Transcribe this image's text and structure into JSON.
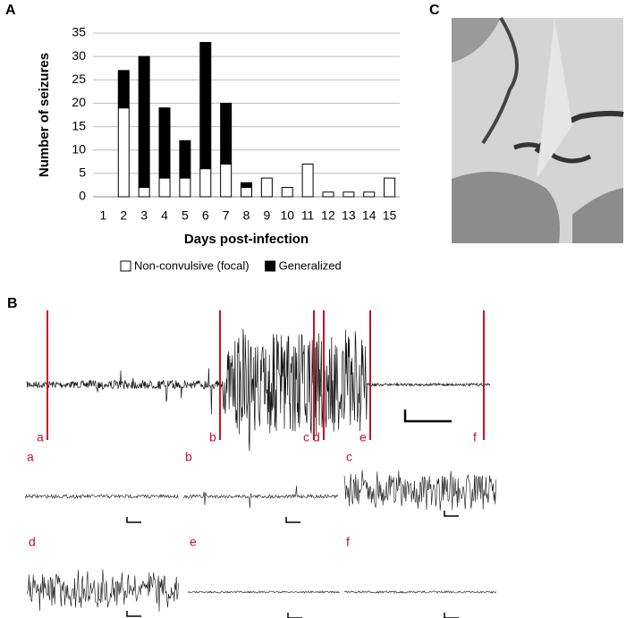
{
  "chart_data": {
    "type": "stacked-bar",
    "x_label": "Days post-infection",
    "y_label": "Number of seizures",
    "categories": [
      "1",
      "2",
      "3",
      "4",
      "5",
      "6",
      "7",
      "8",
      "9",
      "10",
      "11",
      "12",
      "13",
      "14",
      "15"
    ],
    "series": [
      {
        "name": "Non-convulsive (focal)",
        "color": "#ffffff",
        "values": [
          0,
          19,
          2,
          4,
          4,
          6,
          7,
          2,
          4,
          2,
          7,
          1,
          1,
          1,
          4
        ]
      },
      {
        "name": "Generalized",
        "color": "#000000",
        "values": [
          0,
          8,
          28,
          15,
          8,
          27,
          13,
          1,
          0,
          0,
          0,
          0,
          0,
          0,
          0
        ]
      }
    ],
    "ylim": [
      0,
      35
    ],
    "yticks": [
      0,
      5,
      10,
      15,
      20,
      25,
      30,
      35
    ],
    "grid": true,
    "legend": "bottom"
  },
  "panels": {
    "a": "A",
    "b": "B",
    "c": "C"
  },
  "trace_labels": [
    "a",
    "b",
    "c",
    "d",
    "e",
    "f"
  ]
}
